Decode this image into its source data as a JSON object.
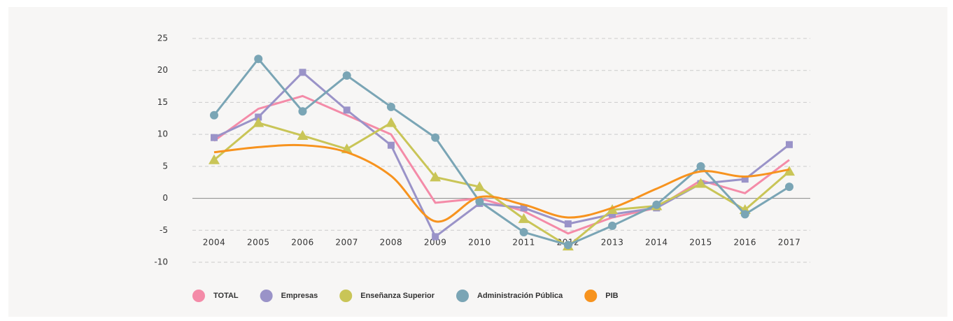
{
  "chart_data": {
    "type": "line",
    "categories": [
      "2004",
      "2005",
      "2006",
      "2007",
      "2008",
      "2009",
      "2010",
      "2011",
      "2012",
      "2013",
      "2014",
      "2015",
      "2016",
      "2017"
    ],
    "series": [
      {
        "name": "TOTAL",
        "color": "#f48ba8",
        "values": [
          9,
          14,
          16,
          13,
          10,
          -0.7,
          0,
          -2,
          -5.5,
          -3,
          -1.5,
          2.8,
          0.8,
          6
        ]
      },
      {
        "name": "Empresas",
        "color": "#9a93c8",
        "marker": "square",
        "values": [
          9.5,
          12.7,
          19.7,
          13.8,
          8.3,
          -6,
          -0.8,
          -1.5,
          -4,
          -2.5,
          -1.5,
          2.3,
          3,
          8.4
        ]
      },
      {
        "name": "Enseñanza Superior",
        "color": "#c9c557",
        "marker": "triangle",
        "values": [
          6,
          11.8,
          9.8,
          7.7,
          11.8,
          3.3,
          1.8,
          -3.2,
          -7.5,
          -1.8,
          -1.2,
          2.3,
          -1.8,
          4.2
        ]
      },
      {
        "name": "Administración Pública",
        "color": "#7aa5b5",
        "marker": "circle",
        "values": [
          13,
          21.8,
          13.6,
          19.2,
          14.3,
          9.5,
          -0.5,
          -5.3,
          -7.3,
          -4.3,
          -1,
          5,
          -2.5,
          1.8
        ]
      },
      {
        "name": "PIB",
        "color": "#f7931e",
        "smooth": true,
        "values": [
          7.2,
          8,
          8.3,
          7.2,
          3.5,
          -3.6,
          0.2,
          -1,
          -3,
          -1.5,
          1.5,
          4.2,
          3.4,
          4.5
        ]
      }
    ],
    "ylim": [
      -10,
      25
    ],
    "yticks": [
      25,
      20,
      15,
      10,
      5,
      0,
      -5,
      -10
    ],
    "grid": true,
    "legend": "bottom"
  }
}
